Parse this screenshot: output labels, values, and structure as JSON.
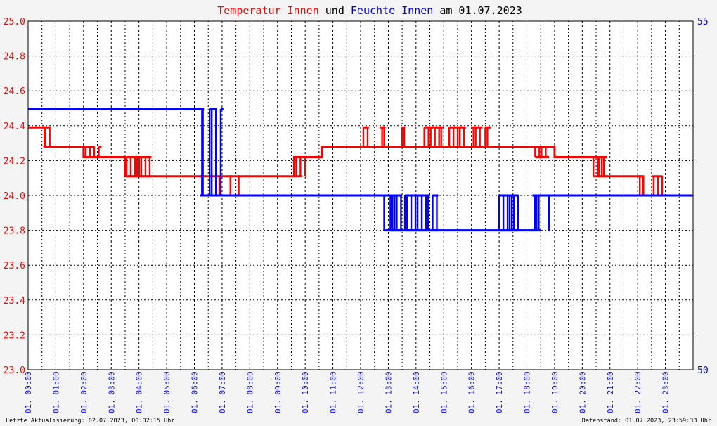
{
  "title": {
    "part1": "Temperatur Innen",
    "part2": " und ",
    "part3": "Feuchte Innen",
    "part4": " am 01.07.2023"
  },
  "colors": {
    "temperature": "#ff0000",
    "humidity": "#0000ff",
    "text": "#000000",
    "background": "#f4f4f4"
  },
  "footer": {
    "left": "Letzte Aktualisierung: 02.07.2023, 00:02:15 Uhr",
    "right": "Datenstand: 01.07.2023, 23:59:33 Uhr"
  },
  "chart_data": {
    "type": "line",
    "grid": true,
    "x_range_hours": [
      0,
      24
    ],
    "x_ticks": [
      "01. 00:00",
      "01. 01:00",
      "01. 02:00",
      "01. 03:00",
      "01. 04:00",
      "01. 05:00",
      "01. 06:00",
      "01. 07:00",
      "01. 08:00",
      "01. 09:00",
      "01. 10:00",
      "01. 11:00",
      "01. 12:00",
      "01. 13:00",
      "01. 14:00",
      "01. 15:00",
      "01. 16:00",
      "01. 17:00",
      "01. 18:00",
      "01. 19:00",
      "01. 20:00",
      "01. 21:00",
      "01. 22:00",
      "01. 23:00"
    ],
    "y_left": {
      "min": 23.0,
      "max": 25.0,
      "ticks": [
        "23.0",
        "23.2",
        "23.4",
        "23.6",
        "23.8",
        "24.0",
        "24.2",
        "24.4",
        "24.6",
        "24.8",
        "25.0"
      ]
    },
    "y_right": {
      "min": 50,
      "max": 55,
      "ticks": [
        "50",
        "55"
      ]
    },
    "series": [
      {
        "name": "Temperatur Innen",
        "axis": "left",
        "color": "#ff0000",
        "base_steps": [
          [
            0.0,
            24.39
          ],
          [
            0.6,
            24.28
          ],
          [
            2.0,
            24.22
          ],
          [
            3.0,
            24.22
          ],
          [
            3.5,
            24.11
          ],
          [
            9.6,
            24.22
          ],
          [
            10.6,
            24.28
          ],
          [
            13.5,
            24.28
          ],
          [
            15.0,
            24.28
          ],
          [
            18.5,
            24.28
          ],
          [
            19.0,
            24.22
          ],
          [
            20.3,
            24.22
          ],
          [
            20.6,
            24.11
          ],
          [
            21.9,
            24.11
          ],
          [
            22.2,
            24.0
          ],
          [
            24.0,
            24.0
          ]
        ],
        "noise_bands": [
          [
            0.55,
            0.8,
            24.28,
            24.39
          ],
          [
            2.0,
            2.4,
            24.22,
            24.28
          ],
          [
            2.55,
            2.65,
            24.22,
            24.28
          ],
          [
            3.55,
            4.45,
            24.11,
            24.22
          ],
          [
            6.2,
            6.35,
            24.0,
            24.11
          ],
          [
            6.9,
            6.95,
            24.0,
            24.11
          ],
          [
            7.3,
            7.35,
            24.0,
            24.11
          ],
          [
            7.6,
            7.65,
            24.0,
            24.11
          ],
          [
            7.85,
            7.9,
            24.0,
            24.11
          ],
          [
            9.6,
            9.9,
            24.11,
            24.22
          ],
          [
            10.0,
            10.05,
            24.11,
            24.22
          ],
          [
            12.1,
            12.3,
            24.28,
            24.39
          ],
          [
            12.7,
            12.9,
            24.28,
            24.39
          ],
          [
            13.5,
            13.6,
            24.28,
            24.39
          ],
          [
            14.3,
            15.0,
            24.28,
            24.39
          ],
          [
            15.2,
            15.8,
            24.28,
            24.39
          ],
          [
            16.0,
            16.4,
            24.28,
            24.39
          ],
          [
            16.5,
            16.7,
            24.28,
            24.39
          ],
          [
            18.3,
            18.8,
            24.22,
            24.28
          ],
          [
            20.4,
            20.9,
            24.11,
            24.22
          ],
          [
            22.0,
            22.15,
            24.0,
            24.11
          ],
          [
            22.5,
            22.9,
            24.0,
            24.11
          ]
        ]
      },
      {
        "name": "Feuchte Innen",
        "axis": "right",
        "color": "#0000ff",
        "base_steps": [
          [
            0.0,
            53.74
          ],
          [
            6.2,
            53.74
          ],
          [
            6.3,
            52.5
          ],
          [
            12.9,
            52.5
          ],
          [
            13.1,
            52.0
          ],
          [
            17.0,
            52.0
          ],
          [
            18.0,
            52.0
          ],
          [
            18.3,
            52.5
          ],
          [
            24.0,
            52.5
          ]
        ],
        "noise_bands": [
          [
            6.2,
            6.35,
            52.5,
            53.74
          ],
          [
            6.55,
            6.8,
            52.5,
            53.74
          ],
          [
            6.95,
            7.05,
            52.5,
            53.74
          ],
          [
            12.85,
            13.0,
            52.0,
            52.5
          ],
          [
            13.0,
            13.5,
            52.0,
            52.5
          ],
          [
            13.6,
            14.5,
            52.0,
            52.5
          ],
          [
            14.6,
            14.8,
            52.0,
            52.5
          ],
          [
            17.0,
            17.7,
            52.0,
            52.5
          ],
          [
            18.2,
            18.5,
            52.0,
            52.5
          ],
          [
            18.8,
            18.85,
            52.0,
            52.5
          ]
        ]
      }
    ]
  }
}
